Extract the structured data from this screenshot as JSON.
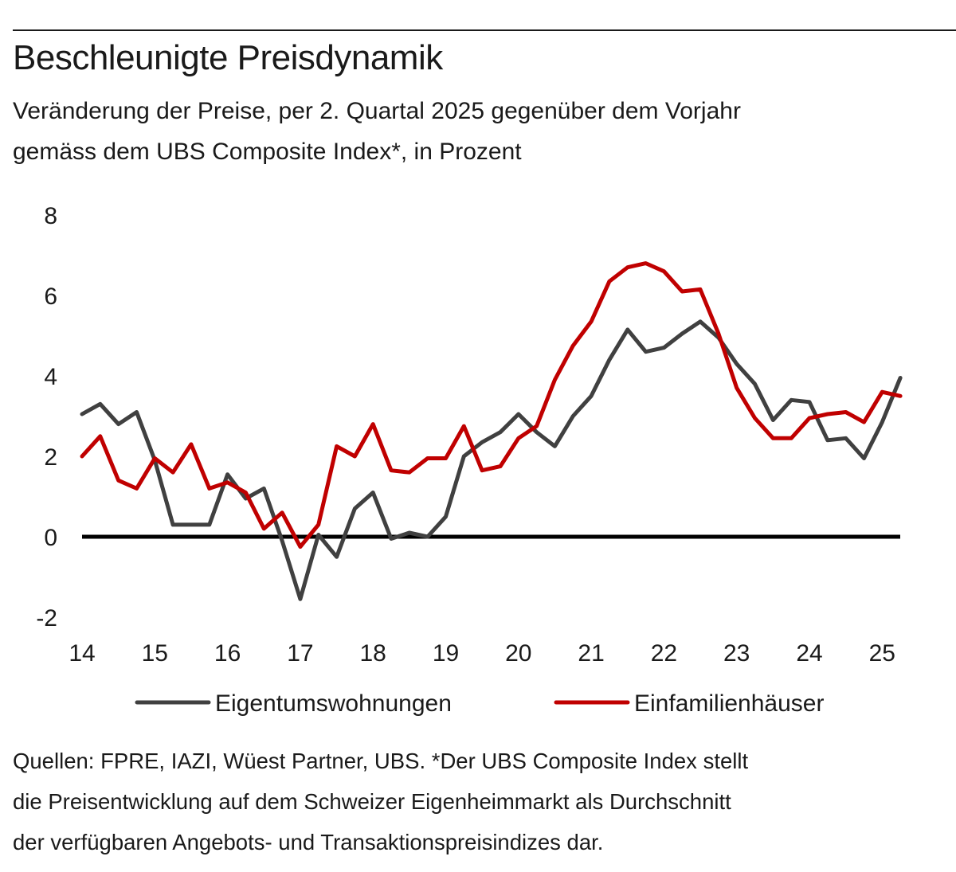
{
  "title": "Beschleunigte Preisdynamik",
  "subtitle_line1": "Veränderung der Preise, per 2. Quartal 2025 gegenüber dem Vorjahr",
  "subtitle_line2": "gemäss dem UBS Composite Index*, in Prozent",
  "source_line1": "Quellen: FPRE, IAZI, Wüest Partner, UBS. *Der UBS Composite Index stellt",
  "source_line2": "die Preisentwicklung auf dem Schweizer Eigenheimmarkt als Durchschnitt",
  "source_line3": "der verfügbaren Angebots- und Transaktionspreisindizes dar.",
  "chart_data": {
    "type": "line",
    "title": "Beschleunigte Preisdynamik",
    "xlabel": "",
    "ylabel": "Prozent",
    "ylim": [
      -2,
      8
    ],
    "yticks": [
      "8",
      "6",
      "4",
      "2",
      "0",
      "-2"
    ],
    "ytick_values": [
      8,
      6,
      4,
      2,
      0,
      -2
    ],
    "xticks": [
      "14",
      "15",
      "16",
      "17",
      "18",
      "19",
      "20",
      "21",
      "22",
      "23",
      "24",
      "25"
    ],
    "xtick_values": [
      2014,
      2015,
      2016,
      2017,
      2018,
      2019,
      2020,
      2021,
      2022,
      2023,
      2024,
      2025
    ],
    "x_start": 2014,
    "x_step": 0.25,
    "zero_line": true,
    "grid": false,
    "legend_position": "bottom",
    "colors": {
      "Eigentumswohnungen": "#404040",
      "Einfamilienhäuser": "#c00000",
      "zero": "#000000"
    },
    "series": [
      {
        "name": "Eigentumswohnungen",
        "values": [
          3.05,
          3.3,
          2.8,
          3.1,
          1.9,
          0.3,
          0.3,
          0.3,
          1.55,
          0.95,
          1.2,
          -0.1,
          -1.55,
          0.05,
          -0.5,
          0.7,
          1.1,
          -0.05,
          0.1,
          0.0,
          0.5,
          2.0,
          2.35,
          2.6,
          3.05,
          2.6,
          2.25,
          3.0,
          3.5,
          4.4,
          5.15,
          4.6,
          4.7,
          5.05,
          5.35,
          4.95,
          4.3,
          3.8,
          2.9,
          3.4,
          3.35,
          2.4,
          2.45,
          1.95,
          2.85,
          3.95
        ]
      },
      {
        "name": "Einfamilienhäuser",
        "values": [
          2.0,
          2.5,
          1.4,
          1.2,
          1.95,
          1.6,
          2.3,
          1.2,
          1.35,
          1.1,
          0.2,
          0.6,
          -0.25,
          0.3,
          2.25,
          2.0,
          2.8,
          1.65,
          1.6,
          1.95,
          1.95,
          2.75,
          1.65,
          1.75,
          2.45,
          2.75,
          3.9,
          4.75,
          5.35,
          6.35,
          6.7,
          6.8,
          6.6,
          6.1,
          6.15,
          5.05,
          3.7,
          2.95,
          2.45,
          2.45,
          2.95,
          3.05,
          3.1,
          2.85,
          3.6,
          3.5
        ]
      }
    ]
  }
}
